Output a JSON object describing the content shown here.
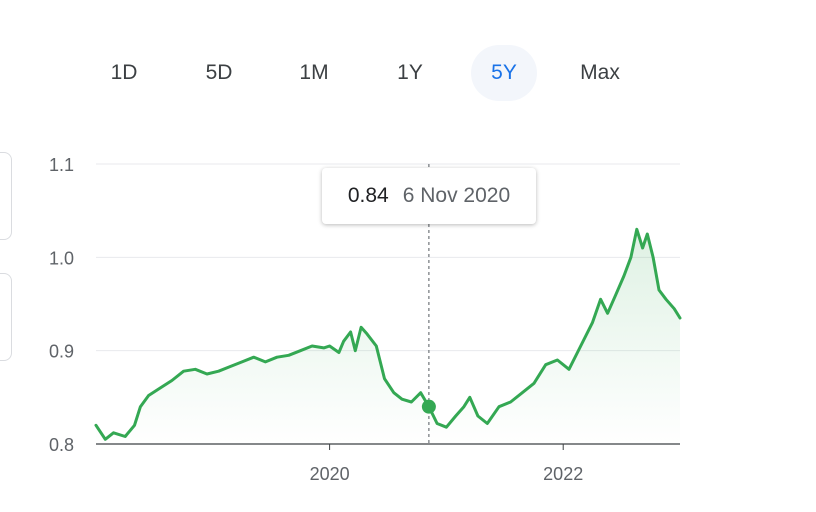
{
  "range_tabs": {
    "items": [
      {
        "id": "1d",
        "label": "1D"
      },
      {
        "id": "5d",
        "label": "5D"
      },
      {
        "id": "1m",
        "label": "1M"
      },
      {
        "id": "1y",
        "label": "1Y"
      },
      {
        "id": "5y",
        "label": "5Y"
      },
      {
        "id": "max",
        "label": "Max"
      }
    ],
    "selected": "5Y"
  },
  "tooltip": {
    "value": "0.84",
    "date": "6 Nov 2020"
  },
  "colors": {
    "line": "#34a853",
    "active_tab_text": "#1a73e8",
    "grid": "#e8eaed",
    "axis_text": "#5f6368"
  },
  "chart_data": {
    "type": "line",
    "title": "",
    "xlabel": "",
    "ylabel": "",
    "xlim": [
      2018.0,
      2023.0
    ],
    "ylim": [
      0.8,
      1.1
    ],
    "yticks": [
      0.8,
      0.9,
      1.0,
      1.1
    ],
    "ytick_labels": [
      "0.8",
      "0.9",
      "1.0",
      "1.1"
    ],
    "xticks": [
      2020,
      2022
    ],
    "xtick_labels": [
      "2020",
      "2022"
    ],
    "grid": true,
    "highlight": {
      "x": 2020.85,
      "y": 0.84
    },
    "series": [
      {
        "x": [
          2018.0,
          2018.08,
          2018.15,
          2018.25,
          2018.33,
          2018.38,
          2018.45,
          2018.55,
          2018.65,
          2018.75,
          2018.85,
          2018.95,
          2019.05,
          2019.15,
          2019.25,
          2019.35,
          2019.45,
          2019.55,
          2019.65,
          2019.75,
          2019.85,
          2019.95,
          2020.0,
          2020.08,
          2020.12,
          2020.18,
          2020.22,
          2020.27,
          2020.32,
          2020.4,
          2020.47,
          2020.55,
          2020.62,
          2020.7,
          2020.78,
          2020.85,
          2020.92,
          2021.0,
          2021.08,
          2021.15,
          2021.2,
          2021.27,
          2021.35,
          2021.45,
          2021.55,
          2021.65,
          2021.75,
          2021.85,
          2021.95,
          2022.05,
          2022.15,
          2022.25,
          2022.32,
          2022.38,
          2022.45,
          2022.52,
          2022.58,
          2022.63,
          2022.68,
          2022.72,
          2022.77,
          2022.82,
          2022.88,
          2022.95,
          2023.0
        ],
        "y": [
          0.82,
          0.805,
          0.812,
          0.808,
          0.82,
          0.84,
          0.852,
          0.86,
          0.868,
          0.878,
          0.88,
          0.875,
          0.878,
          0.883,
          0.888,
          0.893,
          0.888,
          0.893,
          0.895,
          0.9,
          0.905,
          0.903,
          0.905,
          0.898,
          0.91,
          0.92,
          0.9,
          0.925,
          0.918,
          0.905,
          0.87,
          0.855,
          0.848,
          0.845,
          0.855,
          0.84,
          0.822,
          0.818,
          0.83,
          0.84,
          0.85,
          0.83,
          0.822,
          0.84,
          0.845,
          0.855,
          0.865,
          0.885,
          0.89,
          0.88,
          0.905,
          0.93,
          0.955,
          0.94,
          0.96,
          0.98,
          1.0,
          1.03,
          1.01,
          1.025,
          1.0,
          0.965,
          0.955,
          0.945,
          0.935
        ]
      }
    ]
  }
}
